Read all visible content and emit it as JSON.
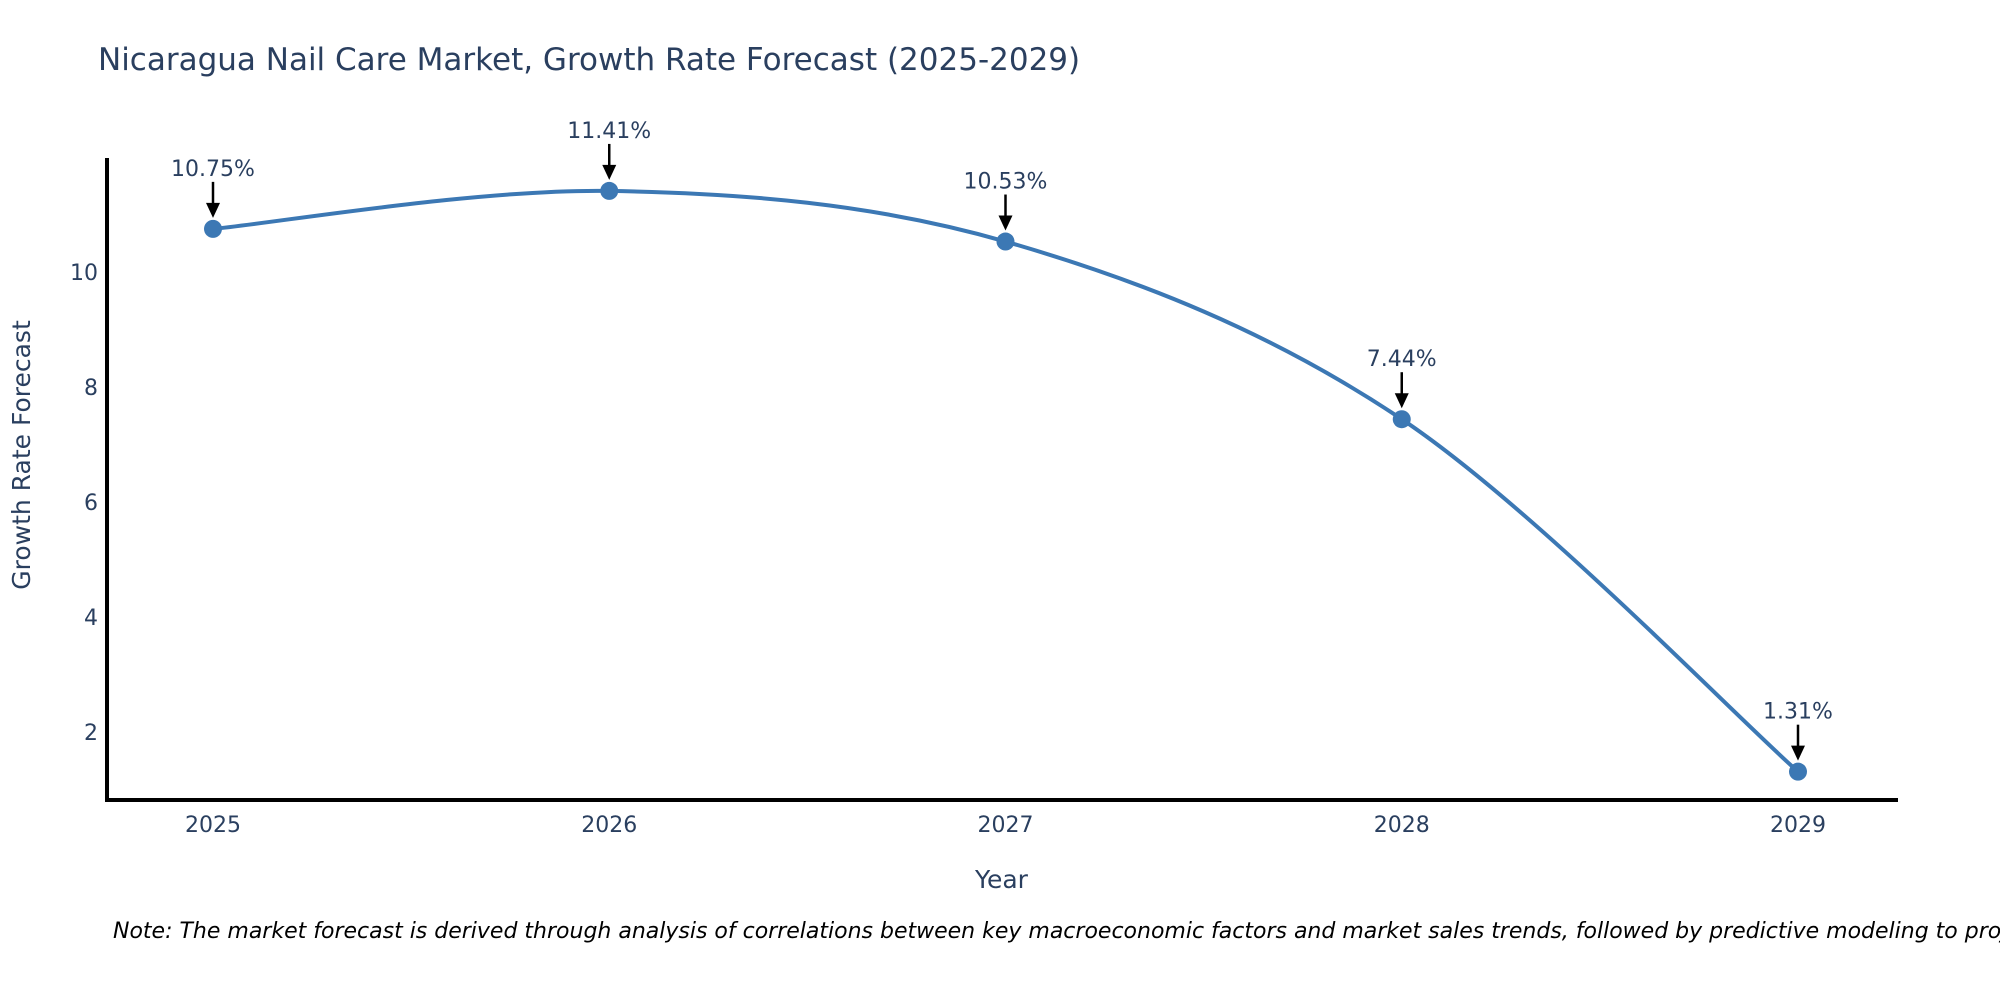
{
  "chart_data": {
    "type": "line",
    "title": "Nicaragua Nail Care Market, Growth Rate Forecast (2025-2029)",
    "xlabel": "Year",
    "ylabel": "Growth Rate Forecast",
    "categories": [
      2025,
      2026,
      2027,
      2028,
      2029
    ],
    "values": [
      10.75,
      11.41,
      10.53,
      7.44,
      1.31
    ],
    "point_labels": [
      "10.75%",
      "11.41%",
      "10.53%",
      "7.44%",
      "1.31%"
    ],
    "yticks": [
      2,
      4,
      6,
      8,
      10
    ],
    "ylim": [
      0.82,
      11.95
    ],
    "grid": false,
    "legend": "none",
    "line_color": "#3c78b4",
    "marker_color": "#3c78b4",
    "axis_color": "#000000",
    "arrow_color": "#000000",
    "text_color": "#2a3f5f"
  },
  "note": "Note: The market forecast is derived through analysis of correlations between key macroeconomic factors and market sales trends, followed by predictive modeling to project future sales"
}
